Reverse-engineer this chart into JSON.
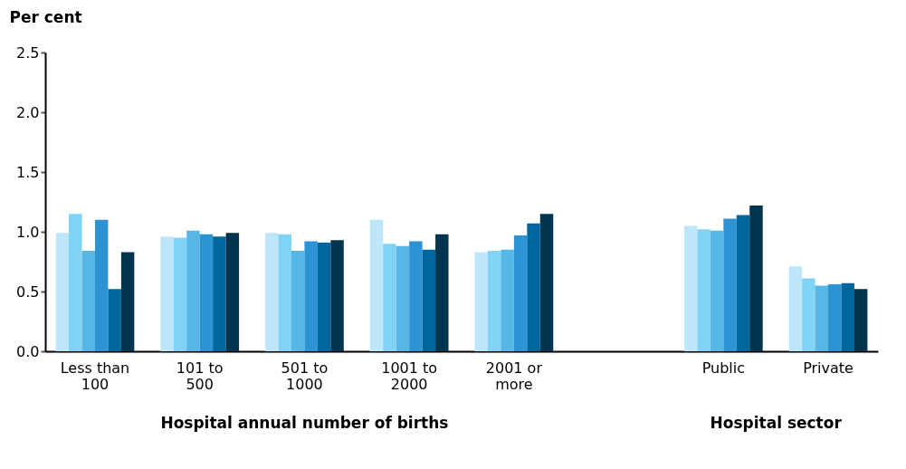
{
  "chart_data": {
    "type": "bar",
    "ylabel": "Per cent",
    "xlabel": [
      "Hospital annual number of births",
      "Hospital sector"
    ],
    "categories": [
      "Less than 100",
      "101 to 500",
      "501 to 1000",
      "1001 to 2000",
      "2001 or more",
      null,
      "Public",
      "Private"
    ],
    "series": [
      {
        "color": "#bde6f9",
        "values": [
          0.99,
          0.96,
          0.99,
          1.1,
          0.83,
          null,
          1.05,
          0.71
        ]
      },
      {
        "color": "#80d3f5",
        "values": [
          1.15,
          0.95,
          0.98,
          0.9,
          0.84,
          null,
          1.02,
          0.61
        ]
      },
      {
        "color": "#56b7e6",
        "values": [
          0.84,
          1.01,
          0.84,
          0.88,
          0.85,
          null,
          1.01,
          0.55
        ]
      },
      {
        "color": "#2e93d3",
        "values": [
          1.1,
          0.98,
          0.92,
          0.92,
          0.97,
          null,
          1.11,
          0.56
        ]
      },
      {
        "color": "#00679e",
        "values": [
          0.52,
          0.96,
          0.91,
          0.85,
          1.07,
          null,
          1.14,
          0.57
        ]
      },
      {
        "color": "#00344f",
        "values": [
          0.83,
          0.99,
          0.93,
          0.98,
          1.15,
          null,
          1.22,
          0.52
        ]
      }
    ],
    "ylim": [
      0,
      2.5
    ],
    "yticks": [
      {
        "value": 0,
        "label": "0.0"
      },
      {
        "value": 0.5,
        "label": "0.5"
      },
      {
        "value": 1,
        "label": "1.0"
      },
      {
        "value": 1.5,
        "label": "1.5"
      },
      {
        "value": 2,
        "label": "2.0"
      },
      {
        "value": 2.5,
        "label": "2.5"
      }
    ],
    "grid": false,
    "legend": false
  }
}
